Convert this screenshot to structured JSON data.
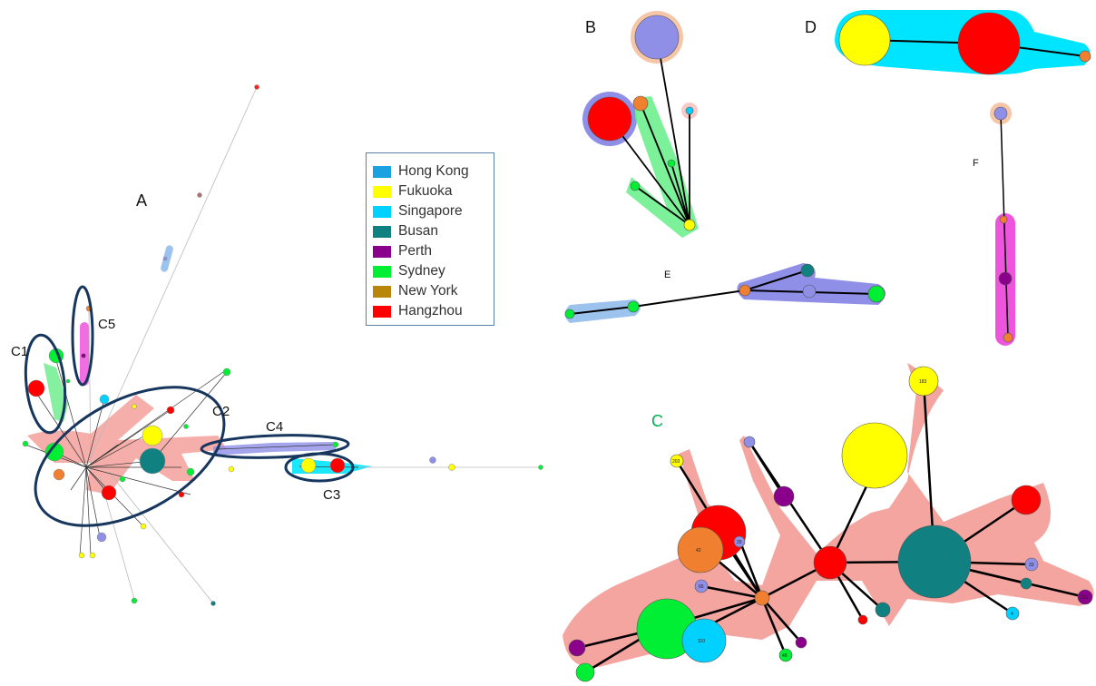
{
  "panels": {
    "a": "A",
    "b": "B",
    "c": "C",
    "d": "D",
    "e": "E",
    "f": "F"
  },
  "clusters": {
    "c1": "C1",
    "c2": "C2",
    "c3": "C3",
    "c4": "C4",
    "c5": "C5"
  },
  "legend": {
    "items": [
      {
        "label": "Hong Kong",
        "color": "#1ba1e2"
      },
      {
        "label": "Fukuoka",
        "color": "#ffff00"
      },
      {
        "label": "Singapore",
        "color": "#00d1ff"
      },
      {
        "label": "Busan",
        "color": "#108080"
      },
      {
        "label": "Perth",
        "color": "#8b008b"
      },
      {
        "label": "Sydney",
        "color": "#00ee33"
      },
      {
        "label": "New York",
        "color": "#b8860b"
      },
      {
        "label": "Hangzhou",
        "color": "#ff0000"
      }
    ]
  },
  "node_labels": {
    "c_top": "183",
    "c_203": "203",
    "c_42": "42",
    "c_29": "29",
    "c_65": "65",
    "c_110": "110",
    "c_33": "33",
    "c_4": "4",
    "c_222": "222",
    "c_48": "48"
  },
  "colors": {
    "halo_red": "#f4a5a0",
    "halo_cyan": "#00e5ff",
    "halo_green": "#66ee88",
    "halo_violet": "#8f8fe8",
    "halo_blue": "#9cc3ee",
    "halo_magenta": "#ee55dd",
    "halo_peach": "#f5c6a8",
    "outline_navy": "#17365d",
    "c_label_green": "#00b050"
  }
}
